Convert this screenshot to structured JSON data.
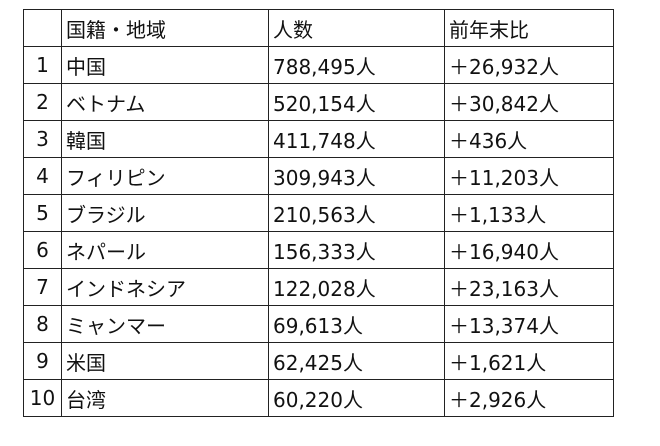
{
  "table": {
    "headers": {
      "rank": "",
      "country": "国籍・地域",
      "count": "人数",
      "change": "前年末比"
    },
    "rows": [
      {
        "rank": "1",
        "country": "中国",
        "count": "788,495人",
        "change": "＋26,932人"
      },
      {
        "rank": "2",
        "country": "ベトナム",
        "count": "520,154人",
        "change": "＋30,842人"
      },
      {
        "rank": "3",
        "country": "韓国",
        "count": "411,748人",
        "change": "＋436人"
      },
      {
        "rank": "4",
        "country": "フィリピン",
        "count": "309,943人",
        "change": "＋11,203人"
      },
      {
        "rank": "5",
        "country": "ブラジル",
        "count": "210,563人",
        "change": "＋1,133人"
      },
      {
        "rank": "6",
        "country": "ネパール",
        "count": "156,333人",
        "change": "＋16,940人"
      },
      {
        "rank": "7",
        "country": "インドネシア",
        "count": "122,028人",
        "change": "＋23,163人"
      },
      {
        "rank": "8",
        "country": "ミャンマー",
        "count": "69,613人",
        "change": "＋13,374人"
      },
      {
        "rank": "9",
        "country": "米国",
        "count": "62,425人",
        "change": "＋1,621人"
      },
      {
        "rank": "10",
        "country": "台湾",
        "count": "60,220人",
        "change": "＋2,926人"
      }
    ]
  }
}
